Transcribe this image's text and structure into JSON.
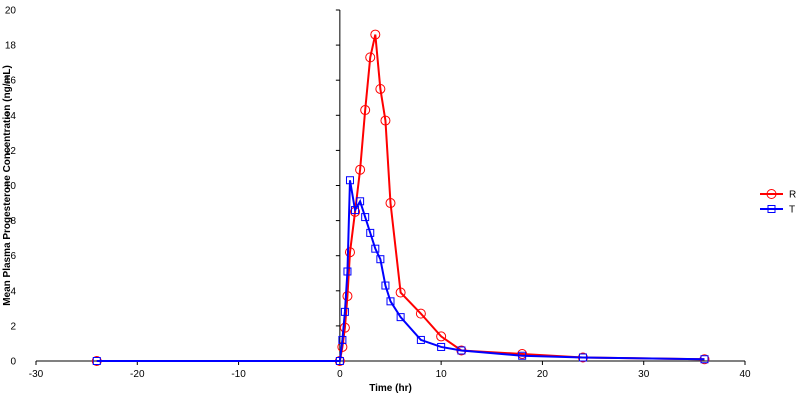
{
  "chart_data": {
    "type": "line",
    "title": "",
    "xlabel": "Time (hr)",
    "ylabel": "Mean Plasma Progesterone Concentration (ng/mL)",
    "xlim": [
      -30,
      40
    ],
    "ylim": [
      0,
      20
    ],
    "xticks": [
      -30,
      -20,
      -10,
      0,
      10,
      20,
      30,
      40
    ],
    "yticks": [
      0,
      2,
      4,
      6,
      8,
      10,
      12,
      14,
      16,
      18,
      20
    ],
    "grid": false,
    "legend_position": "right",
    "series": [
      {
        "name": "R",
        "color": "#ff0000",
        "marker": "circle",
        "x": [
          -24,
          0,
          0.25,
          0.5,
          0.75,
          1,
          1.5,
          2,
          2.5,
          3,
          3.5,
          4,
          4.5,
          5,
          6,
          8,
          10,
          12,
          18,
          24,
          36
        ],
        "y": [
          0,
          0,
          0.8,
          1.9,
          3.7,
          6.2,
          8.5,
          10.9,
          14.3,
          17.3,
          18.6,
          15.5,
          13.7,
          9.0,
          3.9,
          2.7,
          1.4,
          0.6,
          0.4,
          0.2,
          0.1
        ]
      },
      {
        "name": "T",
        "color": "#0000ff",
        "marker": "square",
        "x": [
          -24,
          0,
          0.25,
          0.5,
          0.75,
          1,
          1.5,
          2,
          2.5,
          3,
          3.5,
          4,
          4.5,
          5,
          6,
          8,
          10,
          12,
          18,
          24,
          36
        ],
        "y": [
          0,
          0,
          1.2,
          2.8,
          5.1,
          10.3,
          8.6,
          9.1,
          8.2,
          7.3,
          6.4,
          5.8,
          4.3,
          3.4,
          2.5,
          1.2,
          0.8,
          0.6,
          0.3,
          0.2,
          0.1
        ]
      }
    ]
  }
}
